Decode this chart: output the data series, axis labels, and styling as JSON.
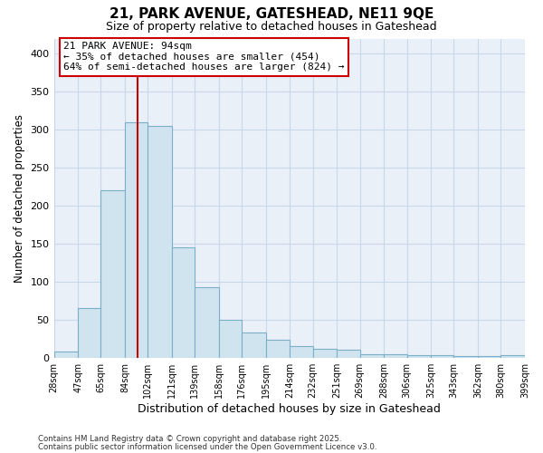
{
  "title": "21, PARK AVENUE, GATESHEAD, NE11 9QE",
  "subtitle": "Size of property relative to detached houses in Gateshead",
  "xlabel": "Distribution of detached houses by size in Gateshead",
  "ylabel": "Number of detached properties",
  "property_size": 94,
  "annotation_text": "21 PARK AVENUE: 94sqm\n← 35% of detached houses are smaller (454)\n64% of semi-detached houses are larger (824) →",
  "bar_color": "#d0e4f0",
  "bar_edge_color": "#7aafc8",
  "vline_color": "#cc0000",
  "annotation_box_color": "#cc0000",
  "grid_color": "#c8d8e8",
  "background_color": "#eaf0f8",
  "bins": [
    28,
    47,
    65,
    84,
    102,
    121,
    139,
    158,
    176,
    195,
    214,
    232,
    251,
    269,
    288,
    306,
    325,
    343,
    362,
    380,
    399
  ],
  "bin_labels": [
    "28sqm",
    "47sqm",
    "65sqm",
    "84sqm",
    "102sqm",
    "121sqm",
    "139sqm",
    "158sqm",
    "176sqm",
    "195sqm",
    "214sqm",
    "232sqm",
    "251sqm",
    "269sqm",
    "288sqm",
    "306sqm",
    "325sqm",
    "343sqm",
    "362sqm",
    "380sqm",
    "399sqm"
  ],
  "counts": [
    8,
    65,
    220,
    310,
    305,
    145,
    93,
    50,
    33,
    24,
    15,
    11,
    10,
    5,
    5,
    3,
    3,
    2,
    2,
    3
  ],
  "ylim": [
    0,
    420
  ],
  "yticks": [
    0,
    50,
    100,
    150,
    200,
    250,
    300,
    350,
    400
  ],
  "footnote1": "Contains HM Land Registry data © Crown copyright and database right 2025.",
  "footnote2": "Contains public sector information licensed under the Open Government Licence v3.0."
}
